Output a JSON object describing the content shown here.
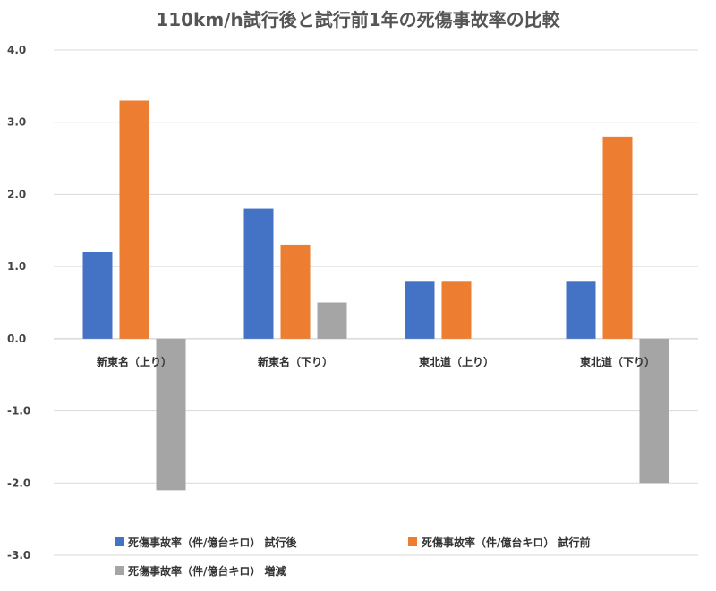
{
  "chart_data": {
    "type": "bar",
    "title": "110km/h試行後と試行前1年の死傷事故率の比較",
    "categories": [
      "新東名（上り）",
      "新東名（下り）",
      "東北道（上り）",
      "東北道（下り）"
    ],
    "series": [
      {
        "name": "死傷事故率（件/億台キロ） 試行後",
        "color": "#4472C4",
        "values": [
          1.2,
          1.8,
          0.8,
          0.8
        ]
      },
      {
        "name": "死傷事故率（件/億台キロ） 試行前",
        "color": "#ED7D31",
        "values": [
          3.3,
          1.3,
          0.8,
          2.8
        ]
      },
      {
        "name": "死傷事故率（件/億台キロ） 増減",
        "color": "#A5A5A5",
        "values": [
          -2.1,
          0.5,
          0.0,
          -2.0
        ]
      }
    ],
    "ylim": [
      -3.0,
      4.0
    ],
    "yticks": [
      "4.0",
      "3.0",
      "2.0",
      "1.0",
      "0.0",
      "-1.0",
      "-2.0",
      "-3.0"
    ],
    "grid": true,
    "legend_position": "bottom"
  }
}
